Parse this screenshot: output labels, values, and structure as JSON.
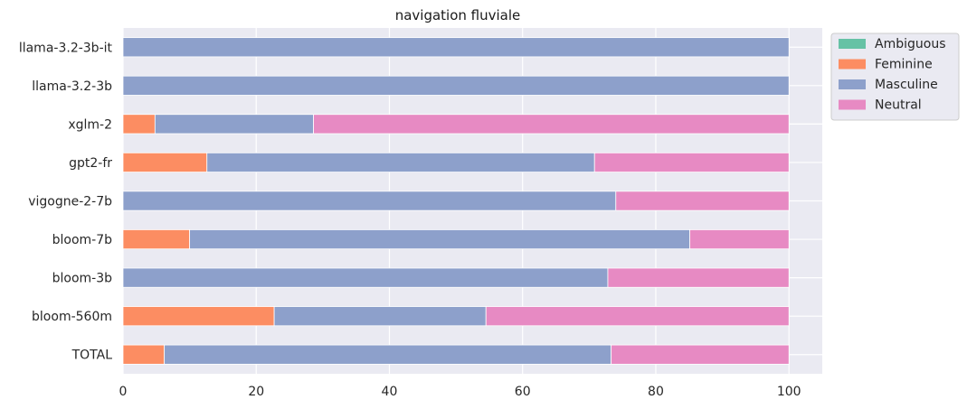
{
  "chart_data": {
    "type": "bar",
    "orientation": "horizontal",
    "stacked": true,
    "title": "navigation fluviale",
    "xlabel": "",
    "ylabel": "",
    "xlim": [
      0,
      105
    ],
    "xticks": [
      "0",
      "20",
      "40",
      "60",
      "80",
      "100"
    ],
    "grid": true,
    "legend_position": "outside-top-right",
    "categories": [
      "llama-3.2-3b-it",
      "llama-3.2-3b",
      "xglm-2",
      "gpt2-fr",
      "vigogne-2-7b",
      "bloom-7b",
      "bloom-3b",
      "bloom-560m",
      "TOTAL"
    ],
    "series": [
      {
        "name": "Ambiguous",
        "color": "#66c2a5",
        "values": [
          0,
          0,
          0,
          0,
          0,
          0,
          0,
          0,
          0
        ]
      },
      {
        "name": "Feminine",
        "color": "#fc8d62",
        "values": [
          0,
          0,
          4.8,
          12.6,
          0,
          10.0,
          0,
          22.7,
          6.2
        ]
      },
      {
        "name": "Masculine",
        "color": "#8da0cb",
        "values": [
          100,
          100,
          23.8,
          58.2,
          74.0,
          75.1,
          72.8,
          31.8,
          67.1
        ]
      },
      {
        "name": "Neutral",
        "color": "#e78ac3",
        "values": [
          0,
          0,
          71.4,
          29.2,
          26.0,
          14.9,
          27.2,
          45.5,
          26.7
        ]
      }
    ]
  }
}
